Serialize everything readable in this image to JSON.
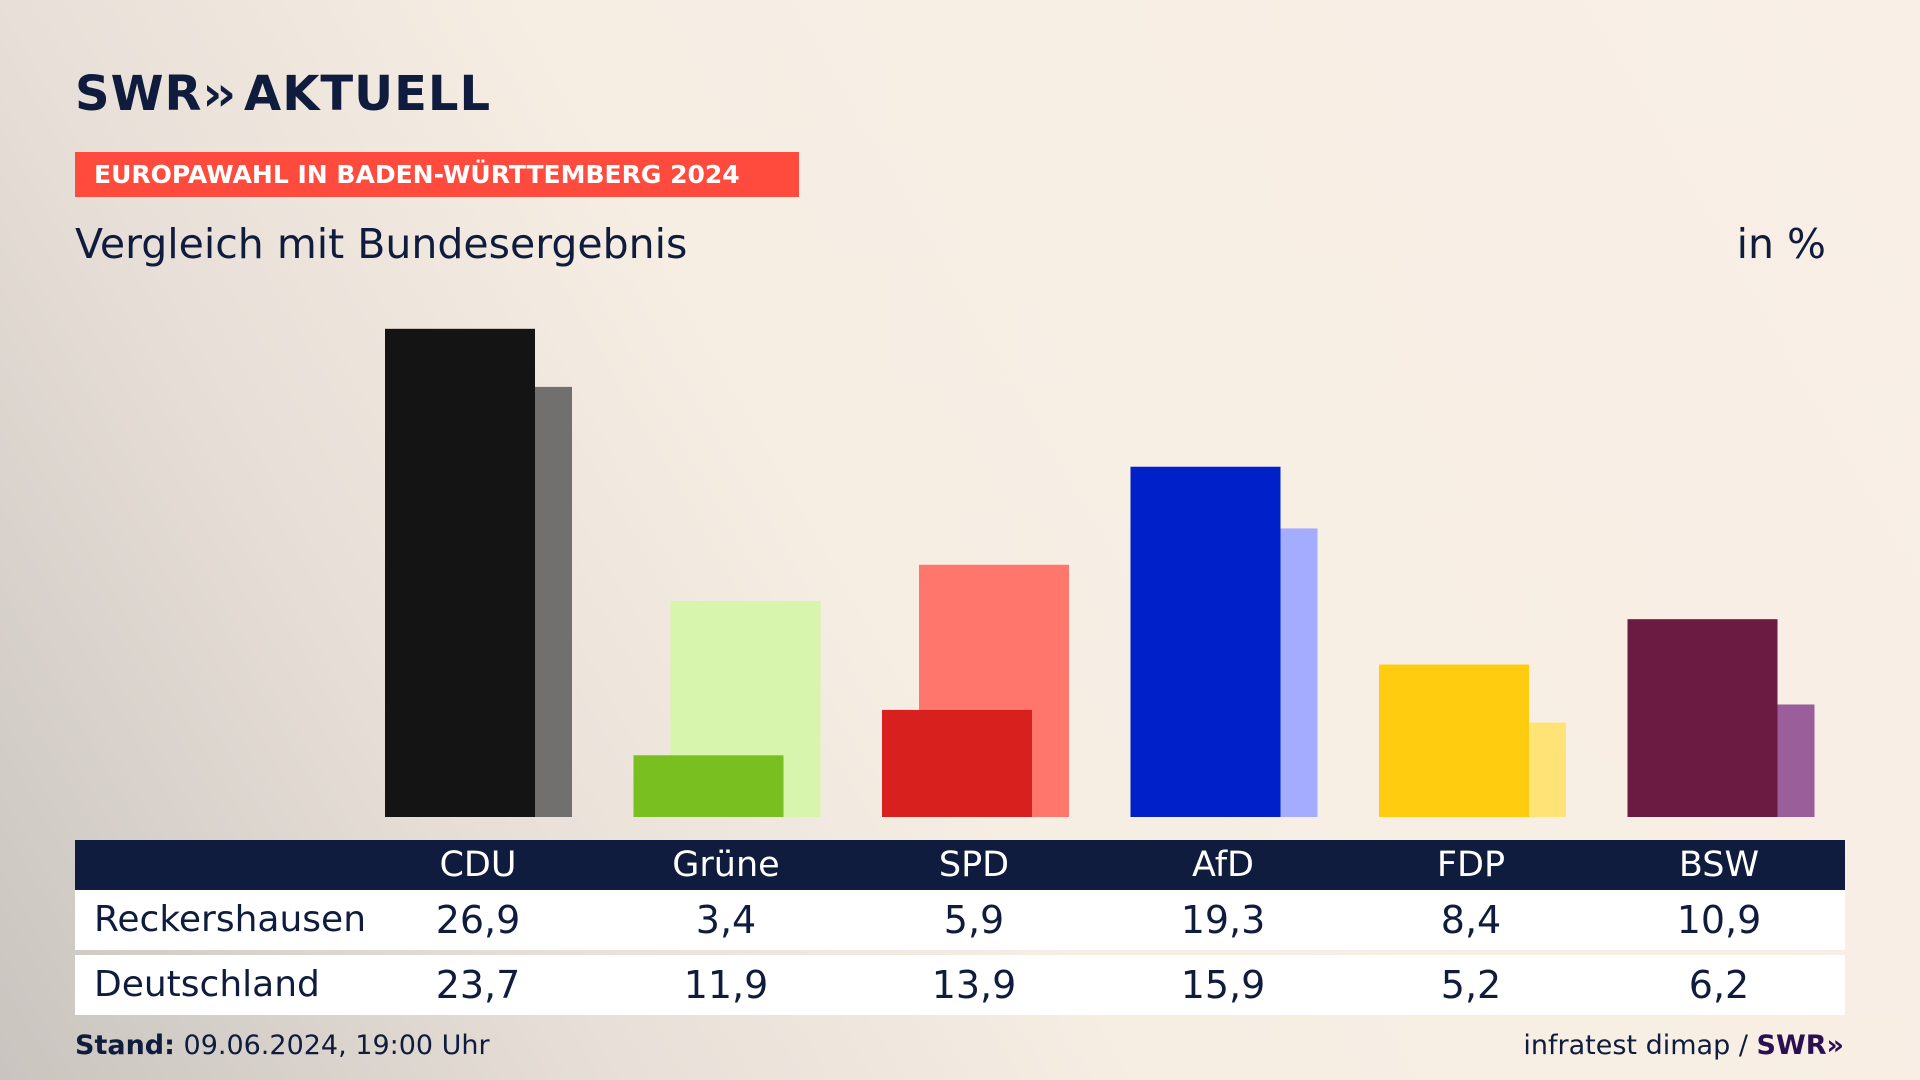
{
  "header": {
    "brand": "SWR",
    "brand_suffix": "AKTUELL",
    "topic": "EUROPAWAHL IN BADEN-WÜRTTEMBERG 2024",
    "subtitle": "Vergleich mit Bundesergebnis",
    "unit": "in %"
  },
  "chart_data": {
    "type": "bar",
    "categories": [
      "CDU",
      "Grüne",
      "SPD",
      "AfD",
      "FDP",
      "BSW"
    ],
    "series": [
      {
        "name": "Reckershausen",
        "values": [
          26.9,
          3.4,
          5.9,
          19.3,
          8.4,
          10.9
        ],
        "display": [
          "26,9",
          "3,4",
          "5,9",
          "19,3",
          "8,4",
          "10,9"
        ]
      },
      {
        "name": "Deutschland",
        "values": [
          23.7,
          11.9,
          13.9,
          15.9,
          5.2,
          6.2
        ],
        "display": [
          "23,7",
          "11,9",
          "13,9",
          "15,9",
          "5,2",
          "6,2"
        ]
      }
    ],
    "colors": {
      "primary": [
        "#141414",
        "#79bf1f",
        "#d8201f",
        "#0021c9",
        "#ffcc0f",
        "#6b1a42"
      ],
      "secondary": [
        "#72706e",
        "#d7f5ac",
        "#ff766c",
        "#a3acff",
        "#ffe377",
        "#9a5f9a"
      ]
    },
    "ylim": [
      0,
      27
    ],
    "grid": false,
    "legend": "table-below"
  },
  "footer": {
    "stand_label": "Stand:",
    "stand_value": "09.06.2024, 19:00 Uhr",
    "source": "infratest dimap /",
    "source_logo": "SWR"
  }
}
